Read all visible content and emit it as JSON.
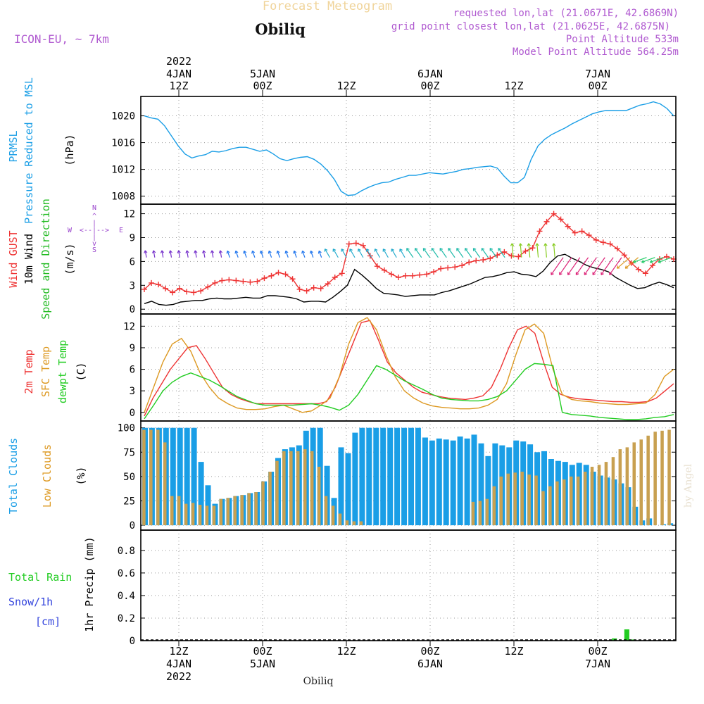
{
  "header": {
    "product": "Forecast Meteogram",
    "location": "Obiliq",
    "model": "ICON-EU,  ~ 7km",
    "requested": "requested lon,lat (21.0671E, 42.6869N)",
    "grid_point": "grid point closest lon,lat (21.0625E, 42.6875N)",
    "point_altitude": "Point Altitude 533m",
    "model_altitude": "Model Point Altitude 564.25m"
  },
  "footer": {
    "location": "Obiliq",
    "credit": "by Angel"
  },
  "colors": {
    "pressure": "#1a9ee6",
    "gust": "#ee3333",
    "wind": "#000000",
    "wind_dir": "#22bb22",
    "temp2m": "#ee3333",
    "sfc": "#dd9922",
    "dewpt": "#22cc22",
    "total_clouds": "#1a9ee6",
    "low_clouds": "#c8a050",
    "rain": "#22cc22",
    "snow": "#3344dd",
    "compass": "#9944cc"
  },
  "time_axis": {
    "top_labels": [
      {
        "day": "4JAN",
        "hour": "12Z",
        "year": "2022",
        "slot": 4
      },
      {
        "day": "5JAN",
        "hour": "00Z",
        "slot": 14
      },
      {
        "day": "",
        "hour": "12Z",
        "slot": 24
      },
      {
        "day": "6JAN",
        "hour": "00Z",
        "slot": 34
      },
      {
        "day": "",
        "hour": "12Z",
        "slot": 44
      },
      {
        "day": "7JAN",
        "hour": "00Z",
        "slot": 54
      }
    ],
    "bottom_labels": [
      {
        "hour": "12Z",
        "day": "4JAN",
        "year": "2022",
        "slot": 4
      },
      {
        "hour": "00Z",
        "day": "5JAN",
        "slot": 14
      },
      {
        "hour": "12Z",
        "day": "",
        "slot": 24
      },
      {
        "hour": "00Z",
        "day": "6JAN",
        "slot": 34
      },
      {
        "hour": "12Z",
        "day": "",
        "slot": 44
      },
      {
        "hour": "00Z",
        "day": "7JAN",
        "slot": 54
      }
    ]
  },
  "chart_data": [
    {
      "type": "line",
      "id": "pressure",
      "ylabel_lines": [
        "PRMSL",
        "Pressure Reduced to MSL"
      ],
      "unit": "(hPa)",
      "ylim": [
        1006.8,
        1022.9
      ],
      "yticks": [
        1008,
        1012,
        1016,
        1020
      ],
      "series": [
        {
          "name": "PRMSL",
          "color_key": "pressure",
          "values": [
            1020.0,
            1019.7,
            1019.5,
            1018.5,
            1017.0,
            1015.5,
            1014.3,
            1013.7,
            1014.0,
            1014.2,
            1014.7,
            1014.6,
            1014.8,
            1015.1,
            1015.3,
            1015.3,
            1015.0,
            1014.7,
            1014.9,
            1014.3,
            1013.6,
            1013.3,
            1013.6,
            1013.8,
            1013.9,
            1013.5,
            1012.8,
            1011.8,
            1010.5,
            1008.7,
            1008.1,
            1008.2,
            1008.8,
            1009.3,
            1009.7,
            1010.0,
            1010.1,
            1010.5,
            1010.8,
            1011.1,
            1011.1,
            1011.3,
            1011.5,
            1011.4,
            1011.3,
            1011.5,
            1011.7,
            1012.0,
            1012.1,
            1012.3,
            1012.4,
            1012.5,
            1012.2,
            1011.0,
            1010.0,
            1010.0,
            1010.8,
            1013.5,
            1015.5,
            1016.5,
            1017.2,
            1017.7,
            1018.2,
            1018.8,
            1019.3,
            1019.8,
            1020.3,
            1020.6,
            1020.8,
            1020.8,
            1020.8,
            1020.8,
            1021.2,
            1021.6,
            1021.8,
            1022.1,
            1021.8,
            1021.1,
            1020.0
          ]
        }
      ]
    },
    {
      "type": "line",
      "id": "wind",
      "ylabel_lines": [
        "Wind GUST",
        "10m Wind",
        "Speed and Direction"
      ],
      "unit": "(m/s)",
      "compass": {
        "n": "N",
        "s": "S",
        "w": "W",
        "e": "E"
      },
      "ylim": [
        -0.6,
        13.2
      ],
      "yticks": [
        0,
        3,
        6,
        9,
        12
      ],
      "series": [
        {
          "name": "Wind GUST",
          "color_key": "gust",
          "marker": "+",
          "values": [
            2.5,
            3.3,
            3.1,
            2.6,
            2.1,
            2.6,
            2.2,
            2.1,
            2.3,
            2.8,
            3.3,
            3.6,
            3.7,
            3.6,
            3.5,
            3.4,
            3.5,
            3.9,
            4.2,
            4.6,
            4.4,
            3.8,
            2.5,
            2.3,
            2.7,
            2.6,
            3.2,
            4.0,
            4.5,
            8.2,
            8.3,
            8.0,
            6.7,
            5.4,
            4.9,
            4.4,
            4.0,
            4.2,
            4.2,
            4.3,
            4.4,
            4.7,
            5.1,
            5.2,
            5.3,
            5.5,
            5.9,
            6.1,
            6.2,
            6.4,
            6.8,
            7.2,
            6.7,
            6.6,
            7.3,
            7.7,
            9.8,
            11.0,
            12.0,
            11.3,
            10.4,
            9.6,
            9.8,
            9.3,
            8.7,
            8.4,
            8.2,
            7.6,
            6.8,
            5.8,
            5.0,
            4.5,
            5.5,
            6.3,
            6.6,
            6.3
          ]
        },
        {
          "name": "10m Wind",
          "color_key": "wind",
          "values": [
            0.7,
            1.0,
            0.6,
            0.5,
            0.6,
            0.9,
            1.0,
            1.1,
            1.1,
            1.3,
            1.4,
            1.3,
            1.3,
            1.4,
            1.5,
            1.4,
            1.4,
            1.7,
            1.7,
            1.6,
            1.5,
            1.3,
            0.9,
            1.0,
            1.0,
            0.9,
            1.5,
            2.2,
            3.0,
            5.0,
            4.3,
            3.5,
            2.6,
            2.0,
            1.9,
            1.8,
            1.6,
            1.7,
            1.8,
            1.8,
            1.8,
            2.1,
            2.3,
            2.6,
            2.9,
            3.2,
            3.6,
            4.0,
            4.1,
            4.3,
            4.6,
            4.7,
            4.4,
            4.3,
            4.1,
            4.8,
            5.9,
            6.7,
            6.9,
            6.4,
            6.0,
            5.5,
            5.2,
            5.0,
            4.7,
            4.0,
            3.5,
            3.0,
            2.6,
            2.7,
            3.1,
            3.4,
            3.1,
            2.7
          ]
        }
      ]
    },
    {
      "type": "line",
      "id": "temperature",
      "ylabel_lines": [
        "2m Temp",
        "SFC Temp",
        "dewpt Temp"
      ],
      "unit": "(C)",
      "ylim": [
        -1.2,
        13.7
      ],
      "yticks": [
        0,
        3,
        6,
        9,
        12
      ],
      "series": [
        {
          "name": "2m Temp",
          "color_key": "temp2m",
          "values": [
            -0.5,
            2.0,
            4.0,
            6.0,
            7.5,
            9.0,
            9.3,
            7.5,
            5.5,
            3.5,
            2.5,
            1.9,
            1.5,
            1.2,
            1.2,
            1.2,
            1.2,
            1.2,
            1.2,
            1.2,
            1.2,
            1.5,
            3.5,
            6.5,
            9.5,
            12.5,
            12.8,
            10.0,
            7.0,
            5.5,
            4.5,
            3.5,
            2.8,
            2.5,
            2.2,
            2.0,
            1.9,
            1.8,
            2.0,
            2.3,
            3.5,
            6.0,
            9.0,
            11.5,
            12.0,
            11.0,
            7.0,
            3.5,
            2.5,
            2.1,
            1.9,
            1.8,
            1.7,
            1.6,
            1.5,
            1.5,
            1.4,
            1.4,
            1.5,
            2.0,
            3.0,
            4.0
          ]
        },
        {
          "name": "SFC Temp",
          "color_key": "sfc",
          "values": [
            0.0,
            3.5,
            7.0,
            9.5,
            10.3,
            8.5,
            5.5,
            3.5,
            2.0,
            1.2,
            0.6,
            0.4,
            0.4,
            0.5,
            0.8,
            1.0,
            0.5,
            0.0,
            0.2,
            1.0,
            2.0,
            5.0,
            9.5,
            12.5,
            13.2,
            11.5,
            8.0,
            5.0,
            3.0,
            2.0,
            1.3,
            0.9,
            0.7,
            0.6,
            0.5,
            0.5,
            0.6,
            1.0,
            1.8,
            4.0,
            8.0,
            11.5,
            12.3,
            11.0,
            6.0,
            2.5,
            1.8,
            1.6,
            1.5,
            1.3,
            1.2,
            1.1,
            1.1,
            1.2,
            1.3,
            2.5,
            5.0,
            6.0
          ]
        },
        {
          "name": "dewpt Temp",
          "color_key": "dewpt",
          "values": [
            -0.9,
            1.0,
            3.0,
            4.2,
            5.0,
            5.5,
            5.0,
            4.5,
            3.8,
            3.0,
            2.2,
            1.7,
            1.2,
            1.0,
            1.0,
            1.0,
            1.0,
            1.1,
            1.2,
            1.0,
            0.7,
            0.3,
            1.0,
            2.5,
            4.5,
            6.5,
            6.0,
            5.2,
            4.4,
            3.8,
            3.2,
            2.5,
            2.0,
            1.8,
            1.7,
            1.6,
            1.6,
            1.8,
            2.2,
            3.0,
            4.5,
            6.0,
            6.8,
            6.7,
            6.5,
            0.0,
            -0.3,
            -0.4,
            -0.5,
            -0.7,
            -0.8,
            -0.9,
            -1.0,
            -1.0,
            -0.9,
            -0.7,
            -0.6,
            -0.3
          ]
        }
      ]
    },
    {
      "type": "bar",
      "id": "clouds",
      "ylabel_lines": [
        "Total Clouds",
        "Low Clouds"
      ],
      "unit": "(%)",
      "ylim": [
        -5,
        107
      ],
      "yticks": [
        0,
        25,
        50,
        75,
        100
      ],
      "series": [
        {
          "name": "Total Clouds",
          "color_key": "total_clouds",
          "values": [
            100,
            100,
            100,
            100,
            100,
            100,
            100,
            100,
            65,
            41,
            22,
            27,
            28,
            30,
            31,
            33,
            34,
            45,
            55,
            69,
            78,
            80,
            82,
            97,
            100,
            100,
            61,
            28,
            80,
            74,
            95,
            100,
            100,
            100,
            100,
            100,
            100,
            100,
            100,
            100,
            90,
            87,
            89,
            88,
            87,
            91,
            89,
            93,
            84,
            71,
            84,
            82,
            80,
            87,
            86,
            83,
            75,
            76,
            68,
            66,
            65,
            62,
            64,
            62,
            55,
            51,
            49,
            47,
            43,
            39,
            19,
            5,
            7,
            0,
            1,
            2
          ]
        },
        {
          "name": "Low Clouds",
          "color_key": "low_clouds",
          "values": [
            98,
            98,
            98,
            85,
            30,
            30,
            22,
            23,
            21,
            20,
            20,
            27,
            28,
            30,
            31,
            33,
            34,
            45,
            55,
            66,
            76,
            76,
            76,
            78,
            76,
            60,
            30,
            20,
            12,
            5,
            4,
            4,
            0,
            0,
            0,
            0,
            0,
            0,
            0,
            0,
            0,
            0,
            0,
            0,
            0,
            0,
            0,
            24,
            25,
            27,
            40,
            50,
            53,
            54,
            55,
            52,
            51,
            35,
            40,
            45,
            47,
            50,
            50,
            55,
            60,
            62,
            65,
            70,
            78,
            80,
            85,
            88,
            92,
            96,
            97,
            98
          ]
        }
      ]
    },
    {
      "type": "bar",
      "id": "precip",
      "ylabel_lines": [
        "1hr Precip (mm)"
      ],
      "legend": {
        "rain_label": "Total  Rain",
        "snow_label": "Snow/1h",
        "snow_unit": "[cm]"
      },
      "ylim": [
        0,
        0.98
      ],
      "yticks": [
        0,
        0.2,
        0.4,
        0.6,
        0.8
      ],
      "series": [
        {
          "name": "Total Rain",
          "color_key": "rain",
          "values": [
            0,
            0,
            0,
            0,
            0,
            0,
            0,
            0,
            0,
            0,
            0,
            0,
            0,
            0,
            0,
            0,
            0,
            0,
            0,
            0,
            0,
            0,
            0,
            0,
            0,
            0,
            0,
            0,
            0,
            0,
            0,
            0,
            0,
            0,
            0,
            0,
            0,
            0,
            0,
            0,
            0,
            0,
            0,
            0,
            0,
            0,
            0,
            0,
            0,
            0,
            0,
            0,
            0,
            0,
            0,
            0,
            0,
            0,
            0,
            0,
            0,
            0,
            0,
            0,
            0,
            0,
            0,
            0,
            0,
            0,
            0,
            0,
            0,
            0,
            0,
            0.02,
            0,
            0.1,
            0.01,
            0,
            0,
            0,
            0,
            0,
            0
          ]
        }
      ]
    }
  ]
}
